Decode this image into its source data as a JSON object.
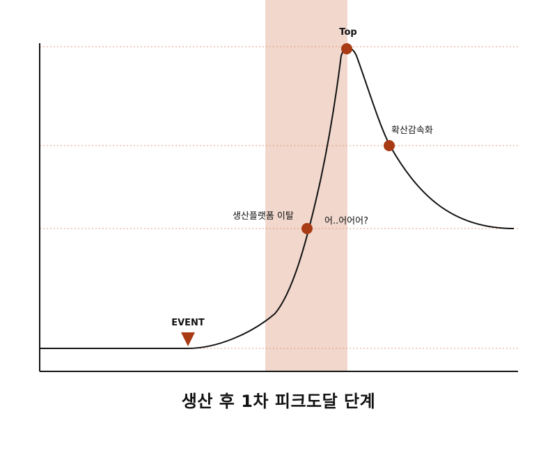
{
  "colors": {
    "band": "#f1d7cc",
    "marker": "#a83a14",
    "guide": "#e59a7c",
    "curve": "#111111",
    "axis": "#111111"
  },
  "labels": {
    "event": "EVENT",
    "top": "Top",
    "departure": "생산플랫폼 이탈",
    "surprise": "어..어어어?",
    "diffusion_slowdown": "확산감속화"
  },
  "caption": "생산 후 1차 피크도달 단계"
}
